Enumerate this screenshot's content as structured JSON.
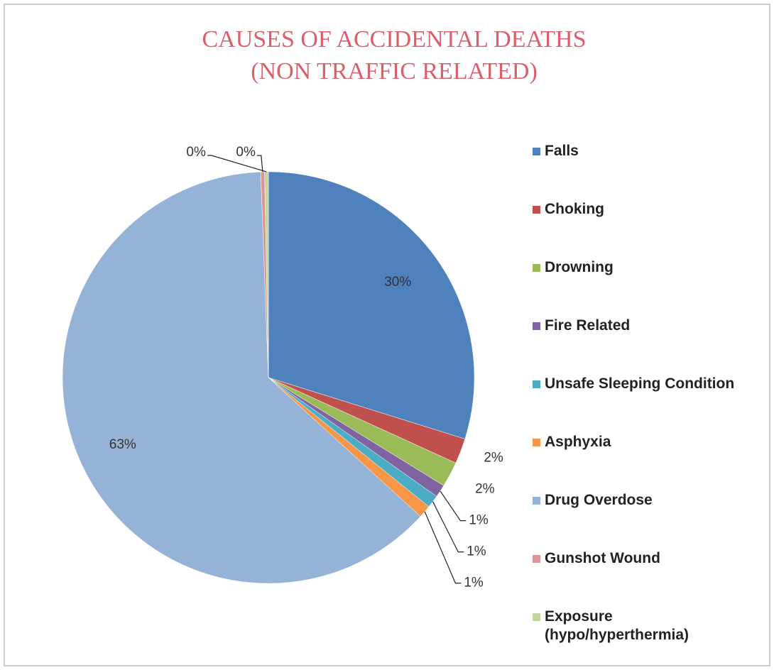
{
  "chart_data": {
    "type": "pie",
    "title": "CAUSES OF ACCIDENTAL DEATHS",
    "subtitle": "(NON TRAFFIC RELATED)",
    "categories": [
      "Falls",
      "Choking",
      "Drowning",
      "Fire Related",
      "Unsafe Sleeping Condition",
      "Asphyxia",
      "Drug Overdose",
      "Gunshot Wound",
      "Exposure\n(hypo/hyperthermia)"
    ],
    "values": [
      30,
      2,
      2,
      1,
      1,
      1,
      63,
      0.3,
      0.3
    ],
    "value_labels": [
      "30%",
      "2%",
      "2%",
      "1%",
      "1%",
      "1%",
      "63%",
      "0%",
      "0%"
    ],
    "colors": [
      "#4f81bd",
      "#c0504d",
      "#9bbb59",
      "#8064a2",
      "#4bacc6",
      "#f79646",
      "#95b3d7",
      "#d99694",
      "#c3d69b"
    ],
    "legend": "right"
  }
}
